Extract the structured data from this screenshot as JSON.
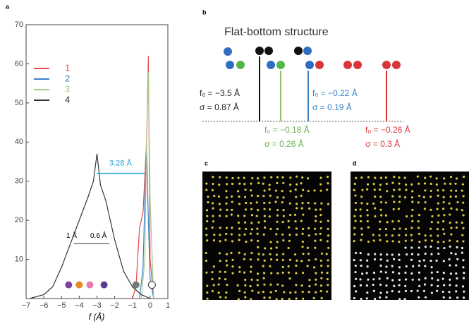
{
  "chart_data": {
    "type": "line",
    "panel_label": "a",
    "xlabel": "f (Å)",
    "xlim": [
      -7,
      1
    ],
    "ylim": [
      0,
      70
    ],
    "xticks": [
      {
        "value": -7,
        "label": "−7"
      },
      {
        "value": -6,
        "label": "−6"
      },
      {
        "value": -5,
        "label": "−5"
      },
      {
        "value": -4,
        "label": "−4"
      },
      {
        "value": -3,
        "label": "−3"
      },
      {
        "value": -2,
        "label": "−2"
      },
      {
        "value": -1,
        "label": "−1"
      },
      0,
      1
    ],
    "yticks": [
      10,
      20,
      30,
      40,
      50,
      60,
      70
    ],
    "legend": "upper left",
    "series": [
      {
        "name": "1",
        "color": "#e8474a",
        "x": [
          -1,
          -0.8,
          -0.6,
          -0.4,
          -0.2,
          -0.1,
          0,
          0.2
        ],
        "values": [
          0,
          3,
          18,
          22,
          40,
          62,
          10,
          0
        ]
      },
      {
        "name": "2",
        "color": "#3a82c4",
        "x": [
          -0.6,
          -0.4,
          -0.3,
          -0.2,
          -0.1,
          0,
          0.2
        ],
        "values": [
          0,
          8,
          25,
          38,
          20,
          5,
          0
        ]
      },
      {
        "name": "3",
        "color": "#a9c98a",
        "x": [
          -0.5,
          -0.3,
          -0.2,
          -0.1,
          0,
          0.2
        ],
        "values": [
          0,
          10,
          40,
          58,
          25,
          0
        ]
      },
      {
        "name": "4",
        "color": "#333333",
        "x": [
          -6.8,
          -6,
          -5.5,
          -5,
          -4.5,
          -4,
          -3.5,
          -3.2,
          -3,
          -2.8,
          -2.5,
          -2,
          -1.5,
          -1,
          -0.5,
          0
        ],
        "values": [
          0,
          1,
          3,
          8,
          14,
          20,
          26,
          30,
          37,
          29,
          25,
          15,
          7,
          3,
          1,
          0
        ]
      }
    ],
    "annotations": [
      "3.28 Å",
      "1 Å",
      "0.6 Å"
    ]
  },
  "panel_b": {
    "label": "b",
    "title": "Flat-bottom structure",
    "annotations": [
      {
        "f": "f₀ = −3.5 Å",
        "sigma": "σ = 0.87 Å",
        "color": "#222222"
      },
      {
        "f": "f₀ = −0.18 Å",
        "sigma": "σ = 0.26 Å",
        "color": "#6bb04a"
      },
      {
        "f": "f₀ = −0.22 Å",
        "sigma": "σ = 0.19 Å",
        "color": "#3a82c4"
      },
      {
        "f": "f₀ = −0.26 Å",
        "sigma": "σ = 0.3 Å",
        "color": "#d9363a"
      }
    ]
  },
  "panel_c": {
    "label": "c"
  },
  "panel_d": {
    "label": "d"
  }
}
